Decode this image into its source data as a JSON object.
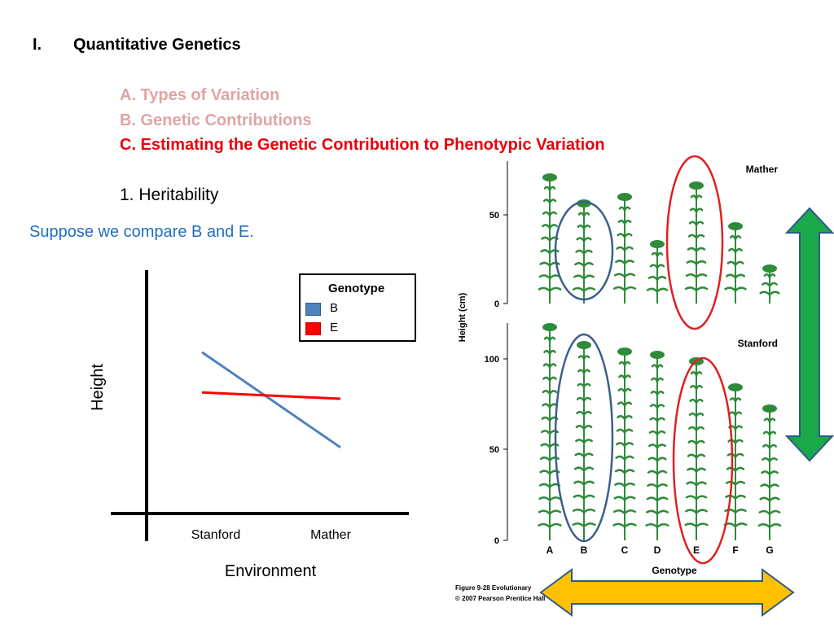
{
  "heading": {
    "number": "I.",
    "title": "Quantitative Genetics"
  },
  "subheadings": [
    "A.  Types of Variation",
    "B. Genetic Contributions",
    "C. Estimating the Genetic Contribution to Phenotypic Variation"
  ],
  "point": "1. Heritability",
  "prompt_text": "Suppose we compare B and E.",
  "chart_data": {
    "type": "line",
    "x": [
      "Stanford",
      "Mather"
    ],
    "xlabel": "Environment",
    "ylabel": "Height",
    "legend_title": "Genotype",
    "legend_position": "top-right",
    "series": [
      {
        "name": "B",
        "color": "#4f81bd",
        "values": [
          0.72,
          0.27
        ]
      },
      {
        "name": "E",
        "color": "#ff0000",
        "values": [
          0.53,
          0.5
        ]
      }
    ]
  },
  "figure": {
    "y_axis_label": "Height (cm)",
    "top_panel_label": "Mather",
    "bottom_panel_label": "Stanford",
    "top_ticks": [
      "50",
      "0"
    ],
    "bottom_ticks": [
      "100",
      "50",
      "0"
    ],
    "genotypes": [
      "A",
      "B",
      "C",
      "D",
      "E",
      "F",
      "G"
    ],
    "x_axis_label": "Genotype",
    "caption_line1": "Figure 9-28  Evolutionary",
    "caption_line2": "© 2007 Pearson Prentice Hall",
    "plant_color": "#2e8b3a",
    "highlight_b_color": "#3a5f8f",
    "highlight_e_color": "#e02020"
  },
  "arrows": {
    "vertical_color": "#1aa84a",
    "horizontal_color": "#ffc000"
  }
}
